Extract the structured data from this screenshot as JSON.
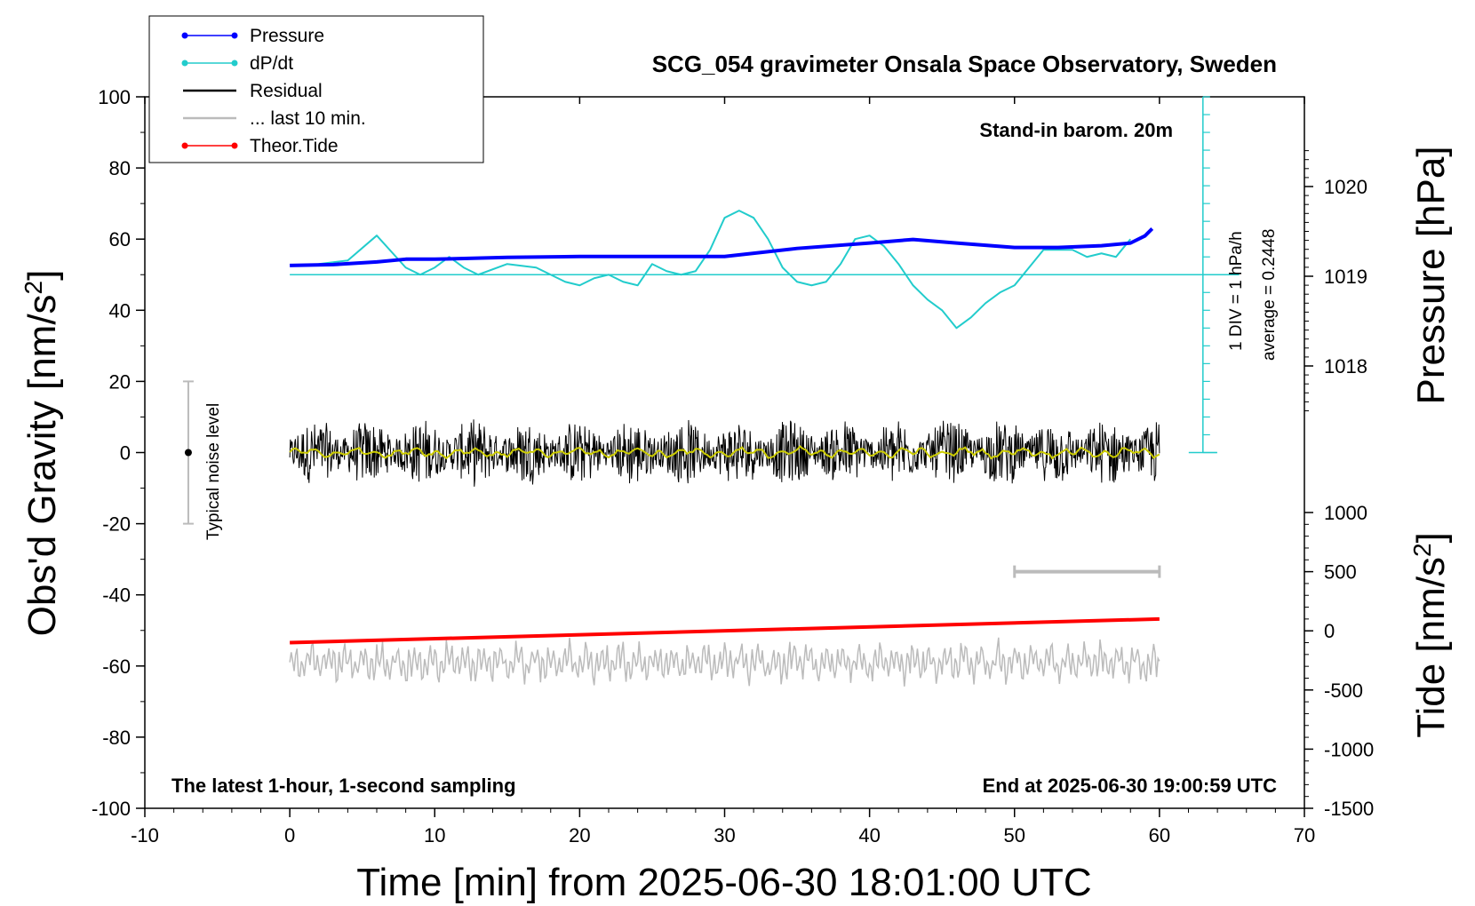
{
  "chart_data": {
    "type": "line",
    "title": "SCG_054 gravimeter Onsala Space Observatory, Sweden",
    "xlabel": "Time [min] from 2025-06-30 18:01:00 UTC",
    "ylabel": "Obs'd Gravity [nm/s²]",
    "ylabel_pressure": "Pressure [hPa]",
    "ylabel_tide": "Tide [nm/s²]",
    "xlim": [
      -10,
      70
    ],
    "ylim": [
      -100,
      100
    ],
    "pressure_lim": [
      1018,
      1020
    ],
    "tide_lim": [
      -1500,
      1000
    ],
    "x_ticks": [
      -10,
      0,
      10,
      20,
      30,
      40,
      50,
      60,
      70
    ],
    "y_ticks": [
      100,
      80,
      60,
      40,
      20,
      0,
      -20,
      -40,
      -60,
      -80,
      -100
    ],
    "pressure_ticks": [
      1020,
      1019,
      1018
    ],
    "tide_ticks": [
      1000,
      500,
      0,
      -500,
      -1000,
      -1500
    ],
    "grid": false,
    "legend_position": "top-left",
    "legend": [
      {
        "label": "Pressure",
        "color": "#0000ff",
        "marker": "dot"
      },
      {
        "label": "dP/dt",
        "color": "#22cccc",
        "marker": "dot"
      },
      {
        "label": "Residual",
        "color": "#000000",
        "marker": "line"
      },
      {
        "label": "... last 10 min.",
        "color": "#bbbbbb",
        "marker": "line"
      },
      {
        "label": "Theor.Tide",
        "color": "#ff0000",
        "marker": "dot"
      }
    ],
    "annotations": {
      "barometer": "Stand-in barom. 20m",
      "div_scale": "1 DIV = 1 hPa/h",
      "average": "average = 0.2448",
      "noise": "Typical noise level",
      "bottom_left": "The latest 1-hour, 1-second sampling",
      "bottom_right": "End at 2025-06-30 19:00:59 UTC"
    },
    "series": [
      {
        "name": "Pressure",
        "axis": "pressure",
        "color": "#0000ff",
        "x": [
          0,
          3,
          6,
          8,
          10,
          15,
          20,
          25,
          30,
          35,
          40,
          43,
          46,
          50,
          53,
          56,
          58,
          59,
          59.5
        ],
        "values": [
          1019.12,
          1019.13,
          1019.16,
          1019.19,
          1019.19,
          1019.21,
          1019.22,
          1019.22,
          1019.22,
          1019.31,
          1019.37,
          1019.41,
          1019.37,
          1019.32,
          1019.32,
          1019.34,
          1019.37,
          1019.45,
          1019.53
        ]
      },
      {
        "name": "dP/dt",
        "axis": "gravity",
        "color": "#22cccc",
        "baseline": 50,
        "x": [
          2,
          4,
          6,
          8,
          9,
          10,
          11,
          12,
          13,
          15,
          17,
          19,
          20,
          21,
          22,
          23,
          24,
          25,
          26,
          27,
          28,
          29,
          30,
          31,
          32,
          33,
          34,
          35,
          36,
          37,
          38,
          39,
          40,
          41,
          42,
          43,
          44,
          45,
          46,
          47,
          48,
          49,
          50,
          51,
          52,
          54,
          55,
          56,
          57,
          58
        ],
        "values": [
          53,
          54,
          61,
          52,
          50,
          52,
          55,
          52,
          50,
          53,
          52,
          48,
          47,
          49,
          50,
          48,
          47,
          53,
          51,
          50,
          51,
          57,
          66,
          68,
          66,
          60,
          52,
          48,
          47,
          48,
          53,
          60,
          61,
          58,
          53,
          47,
          43,
          40,
          35,
          38,
          42,
          45,
          47,
          52,
          57,
          57,
          55,
          56,
          55,
          60
        ]
      },
      {
        "name": "Theor.Tide",
        "axis": "tide",
        "color": "#ff0000",
        "x": [
          0,
          60
        ],
        "values": [
          -100,
          100
        ]
      },
      {
        "name": "Residual",
        "axis": "gravity",
        "color": "#000000",
        "x_range": [
          0,
          60
        ],
        "center": 0,
        "envelope": 10
      },
      {
        "name": "... last 10 min.",
        "axis": "gravity",
        "color": "#bbbbbb",
        "x_range": [
          0,
          60
        ],
        "center": -59,
        "envelope": 6
      }
    ],
    "noise_bar": {
      "x": -7,
      "center": 0,
      "low": -20,
      "high": 20
    },
    "ten_min_bar": {
      "x": [
        50,
        60
      ],
      "tide_value": 500
    },
    "div_axis": {
      "x": 63,
      "bottom": 0,
      "top": 100,
      "zero": 50,
      "step": 5
    }
  }
}
